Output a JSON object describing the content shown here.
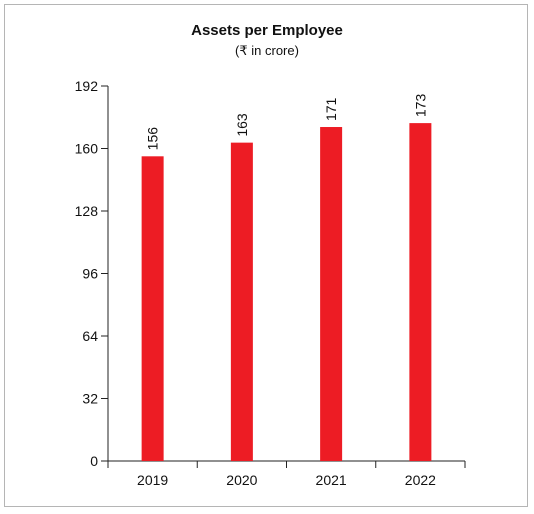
{
  "chart_data": {
    "type": "bar",
    "title": "Assets per Employee",
    "subtitle": "(₹ in crore)",
    "xlabel": "",
    "ylabel": "",
    "categories": [
      "2019",
      "2020",
      "2021",
      "2022"
    ],
    "values": [
      156,
      163,
      171,
      173
    ],
    "data_labels": [
      "156",
      "163",
      "171",
      "173"
    ],
    "yticks": [
      0,
      32,
      64,
      96,
      128,
      160,
      192
    ],
    "ylim": [
      0,
      192
    ],
    "grid": false,
    "legend": "none",
    "bar_color": "#ed1c24"
  }
}
